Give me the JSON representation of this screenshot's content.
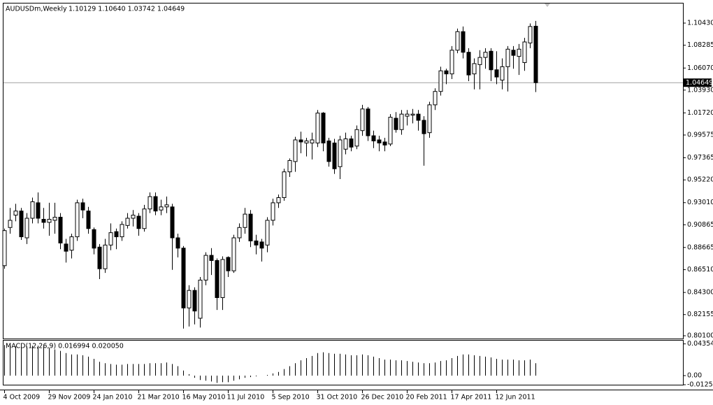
{
  "chart_data": [
    {
      "type": "candlestick",
      "title": "AUDUSDm,Weekly",
      "subtitle": "1.10129 1.10640 1.03742 1.04649",
      "categories": [
        "4 Oct 2009",
        null,
        null,
        null,
        null,
        null,
        null,
        null,
        "29 Nov 2009",
        null,
        null,
        null,
        null,
        null,
        null,
        null,
        "24 Jan 2010",
        null,
        null,
        null,
        null,
        null,
        null,
        null,
        "21 Mar 2010",
        null,
        null,
        null,
        null,
        null,
        null,
        null,
        "16 May 2010",
        null,
        null,
        null,
        null,
        null,
        null,
        null,
        "11 Jul 2010",
        null,
        null,
        null,
        null,
        null,
        null,
        null,
        "5 Sep 2010",
        null,
        null,
        null,
        null,
        null,
        null,
        null,
        "31 Oct 2010",
        null,
        null,
        null,
        null,
        null,
        null,
        null,
        "26 Dec 2010",
        null,
        null,
        null,
        null,
        null,
        null,
        null,
        "20 Feb 2011",
        null,
        null,
        null,
        null,
        null,
        null,
        null,
        "17 Apr 2011",
        null,
        null,
        null,
        null,
        null,
        null,
        null,
        "12 Jun 2011",
        null,
        null,
        null,
        null,
        null,
        null,
        null
      ],
      "open": [
        0.869,
        0.906,
        0.918,
        0.922,
        0.896,
        0.915,
        0.93,
        0.914,
        0.911,
        0.913,
        0.916,
        0.89,
        0.884,
        0.897,
        0.93,
        0.922,
        0.904,
        0.887,
        0.866,
        0.889,
        0.902,
        0.897,
        0.908,
        0.915,
        0.917,
        0.905,
        0.924,
        0.936,
        0.923,
        0.926,
        0.926,
        0.896,
        0.886,
        0.828,
        0.845,
        0.818,
        0.855,
        0.879,
        0.874,
        0.838,
        0.877,
        0.864,
        0.896,
        0.906,
        0.919,
        0.893,
        0.892,
        0.889,
        0.913,
        0.93,
        0.935,
        0.96,
        0.97,
        0.991,
        0.988,
        0.988,
        0.988,
        1.017,
        0.99,
        0.988,
        0.965,
        0.982,
        0.992,
        0.985,
        1.0,
        1.021,
        0.995,
        0.991,
        0.989,
        0.987,
        1.012,
        1.001,
        1.014,
        1.015,
        1.016,
        1.01,
        0.998,
        1.025,
        1.038,
        1.058,
        1.055,
        1.078,
        1.096,
        1.076,
        1.055,
        1.064,
        1.071,
        1.077,
        1.059,
        1.049,
        1.062,
        1.078,
        1.072,
        1.066,
        1.085,
        1.10129
      ],
      "high": [
        0.905,
        0.925,
        0.929,
        0.925,
        0.92,
        0.935,
        0.94,
        0.925,
        0.93,
        0.93,
        0.92,
        0.895,
        0.9,
        0.933,
        0.934,
        0.926,
        0.906,
        0.89,
        0.895,
        0.91,
        0.905,
        0.912,
        0.92,
        0.923,
        0.92,
        0.928,
        0.94,
        0.94,
        0.933,
        0.936,
        0.929,
        0.9,
        0.888,
        0.85,
        0.848,
        0.858,
        0.882,
        0.886,
        0.876,
        0.878,
        0.878,
        0.899,
        0.91,
        0.925,
        0.923,
        0.899,
        0.895,
        0.916,
        0.934,
        0.938,
        0.963,
        0.973,
        0.994,
        0.999,
        0.993,
        0.998,
        1.02,
        1.018,
        0.993,
        0.992,
        0.995,
        0.998,
        0.995,
        1.005,
        1.025,
        1.023,
        1.0,
        0.995,
        0.993,
        1.016,
        1.018,
        1.02,
        1.02,
        1.021,
        1.02,
        1.014,
        1.028,
        1.041,
        1.062,
        1.06,
        1.082,
        1.099,
        1.101,
        1.08,
        1.07,
        1.078,
        1.08,
        1.08,
        1.077,
        1.07,
        1.082,
        1.082,
        1.084,
        1.09,
        1.104,
        1.1064
      ],
      "low": [
        0.866,
        0.9,
        0.912,
        0.894,
        0.89,
        0.91,
        0.91,
        0.905,
        0.898,
        0.9,
        0.885,
        0.872,
        0.876,
        0.893,
        0.915,
        0.9,
        0.88,
        0.856,
        0.862,
        0.884,
        0.885,
        0.893,
        0.905,
        0.907,
        0.898,
        0.902,
        0.92,
        0.918,
        0.918,
        0.92,
        0.865,
        0.877,
        0.808,
        0.81,
        0.812,
        0.809,
        0.85,
        0.86,
        0.826,
        0.826,
        0.858,
        0.862,
        0.892,
        0.9,
        0.887,
        0.88,
        0.873,
        0.882,
        0.908,
        0.925,
        0.932,
        0.955,
        0.96,
        0.978,
        0.975,
        0.972,
        0.984,
        0.98,
        0.965,
        0.958,
        0.953,
        0.977,
        0.98,
        0.982,
        0.995,
        0.99,
        0.983,
        0.98,
        0.98,
        0.985,
        0.998,
        0.996,
        1.005,
        1.007,
        1.0,
        0.966,
        0.993,
        1.02,
        1.034,
        1.045,
        1.05,
        1.075,
        1.07,
        1.048,
        1.04,
        1.04,
        1.06,
        1.048,
        1.045,
        1.04,
        1.038,
        1.06,
        1.054,
        1.058,
        1.08,
        1.03742
      ],
      "close": [
        0.903,
        0.913,
        0.922,
        0.897,
        0.915,
        0.931,
        0.915,
        0.911,
        0.914,
        0.916,
        0.891,
        0.883,
        0.897,
        0.93,
        0.923,
        0.905,
        0.886,
        0.866,
        0.889,
        0.901,
        0.897,
        0.909,
        0.915,
        0.918,
        0.905,
        0.924,
        0.936,
        0.922,
        0.926,
        0.928,
        0.896,
        0.886,
        0.828,
        0.845,
        0.825,
        0.855,
        0.879,
        0.874,
        0.838,
        0.875,
        0.864,
        0.896,
        0.906,
        0.919,
        0.893,
        0.889,
        0.886,
        0.913,
        0.93,
        0.935,
        0.96,
        0.971,
        0.991,
        0.989,
        0.99,
        0.991,
        1.017,
        0.988,
        0.97,
        0.963,
        0.991,
        0.992,
        0.984,
        1.001,
        1.021,
        0.995,
        0.99,
        0.988,
        0.986,
        1.013,
        1.001,
        1.016,
        1.016,
        1.016,
        1.01,
        0.997,
        1.025,
        1.038,
        1.058,
        1.055,
        1.078,
        1.096,
        1.076,
        1.054,
        1.065,
        1.071,
        1.076,
        1.059,
        1.052,
        1.062,
        1.079,
        1.073,
        1.079,
        1.086,
        1.101,
        1.04649
      ],
      "up_color": "#ffffff",
      "down_color": "#000000",
      "current_price": 1.04649,
      "ylim": [
        0.7983,
        1.1233
      ],
      "yticks": [
        {
          "value": 1.1043,
          "label": "1.10430"
        },
        {
          "value": 1.08285,
          "label": "1.08285"
        },
        {
          "value": 1.0607,
          "label": "1.06070"
        },
        {
          "value": 1.0393,
          "label": "1.03930"
        },
        {
          "value": 1.0172,
          "label": "1.01720"
        },
        {
          "value": 0.99575,
          "label": "0.99575"
        },
        {
          "value": 0.97365,
          "label": "0.97365"
        },
        {
          "value": 0.9522,
          "label": "0.95220"
        },
        {
          "value": 0.9301,
          "label": "0.93010"
        },
        {
          "value": 0.90865,
          "label": "0.90865"
        },
        {
          "value": 0.88665,
          "label": "0.88665"
        },
        {
          "value": 0.8651,
          "label": "0.86510"
        },
        {
          "value": 0.843,
          "label": "0.84300"
        },
        {
          "value": 0.82155,
          "label": "0.82155"
        },
        {
          "value": 0.801,
          "label": "0.80100"
        }
      ]
    },
    {
      "type": "bar",
      "title": "MACD(12,26,9) 0.016994 0.020050",
      "values": [
        0.042,
        0.041,
        0.04,
        0.04,
        0.04,
        0.041,
        0.041,
        0.04,
        0.038,
        0.036,
        0.034,
        0.031,
        0.029,
        0.029,
        0.028,
        0.026,
        0.023,
        0.019,
        0.017,
        0.016,
        0.015,
        0.015,
        0.016,
        0.016,
        0.016,
        0.016,
        0.017,
        0.017,
        0.017,
        0.018,
        0.016,
        0.013,
        0.007,
        0.002,
        -0.003,
        -0.006,
        -0.007,
        -0.008,
        -0.01,
        -0.009,
        -0.009,
        -0.007,
        -0.005,
        -0.003,
        -0.002,
        -0.001,
        0.0,
        0.001,
        0.003,
        0.005,
        0.009,
        0.013,
        0.017,
        0.021,
        0.024,
        0.027,
        0.031,
        0.032,
        0.031,
        0.03,
        0.03,
        0.029,
        0.028,
        0.028,
        0.029,
        0.028,
        0.026,
        0.024,
        0.022,
        0.022,
        0.021,
        0.021,
        0.02,
        0.019,
        0.018,
        0.017,
        0.017,
        0.018,
        0.02,
        0.021,
        0.024,
        0.027,
        0.029,
        0.029,
        0.028,
        0.027,
        0.026,
        0.025,
        0.023,
        0.022,
        0.022,
        0.022,
        0.021,
        0.021,
        0.022,
        0.016994
      ],
      "color": "#000000",
      "ylim": [
        -0.0125,
        0.048
      ],
      "yticks": [
        0.043543,
        {
          "value": 0,
          "label": "0.00"
        },
        {
          "value": -0.0125,
          "label": "-0.01250"
        }
      ]
    }
  ]
}
